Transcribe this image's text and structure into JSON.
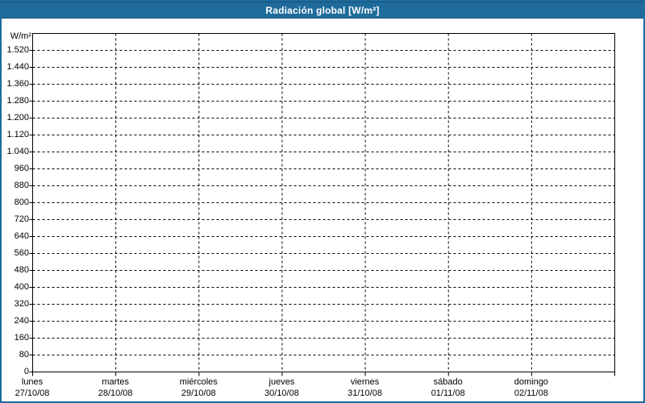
{
  "window": {
    "title": "Radiación global [W/m²]"
  },
  "colors": {
    "titlebar_background": "#1E6B9C",
    "titlebar_edge": "#17517A",
    "titlebar_text": "#FFFFFF",
    "window_border": "#1E6B9C",
    "plot_background": "#FFFFFF",
    "plot_border": "#000000",
    "grid": "#000000",
    "label_text": "#000000"
  },
  "chart_data": {
    "type": "line",
    "title": "Radiación global [W/m²]",
    "ylabel": "W/m²",
    "xlabel": "",
    "grid": "dashed horizontal and vertical, black on white",
    "legend": "none",
    "series": [],
    "y_axis": {
      "min": 0,
      "max": 1600,
      "tick_step": 80,
      "tick_values": [
        0,
        80,
        160,
        240,
        320,
        400,
        480,
        560,
        640,
        720,
        800,
        880,
        960,
        1040,
        1120,
        1200,
        1280,
        1360,
        1440,
        1520
      ],
      "tick_labels": [
        "0",
        "80",
        "160",
        "240",
        "320",
        "400",
        "480",
        "560",
        "640",
        "720",
        "800",
        "880",
        "960",
        "1.040",
        "1.120",
        "1.200",
        "1.280",
        "1.360",
        "1.440",
        "1.520"
      ]
    },
    "x_axis": {
      "categories": [
        {
          "day": "lunes",
          "date": "27/10/08"
        },
        {
          "day": "martes",
          "date": "28/10/08"
        },
        {
          "day": "miércoles",
          "date": "29/10/08"
        },
        {
          "day": "jueves",
          "date": "30/10/08"
        },
        {
          "day": "viernes",
          "date": "31/10/08"
        },
        {
          "day": "sábado",
          "date": "01/11/08"
        },
        {
          "day": "domingo",
          "date": "02/11/08"
        }
      ]
    }
  }
}
